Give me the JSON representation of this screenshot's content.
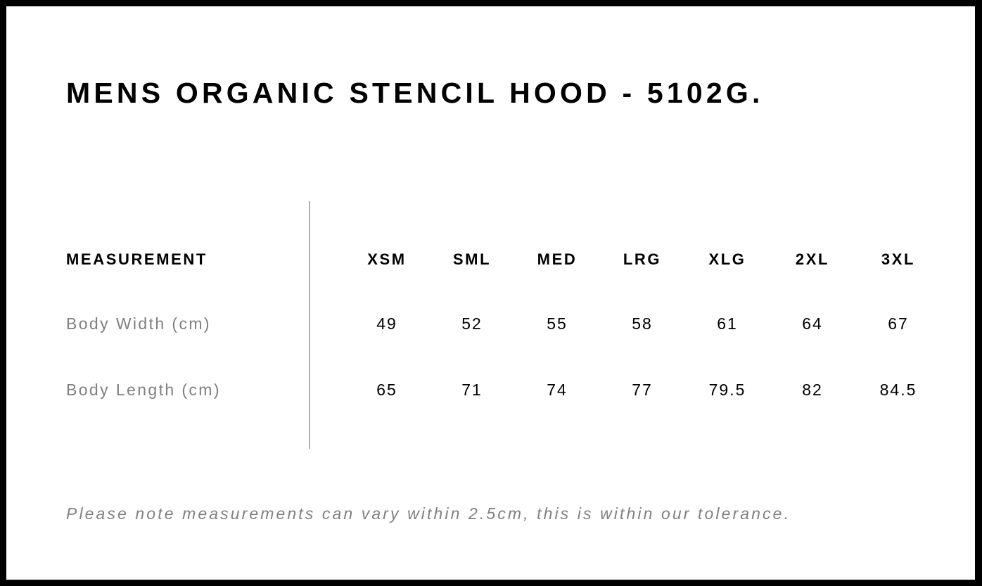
{
  "title": "MENS ORGANIC STENCIL HOOD - 5102G.",
  "table": {
    "header_label": "MEASUREMENT",
    "sizes": [
      "XSM",
      "SML",
      "MED",
      "LRG",
      "XLG",
      "2XL",
      "3XL"
    ],
    "rows": [
      {
        "label": "Body Width (cm)",
        "values": [
          "49",
          "52",
          "55",
          "58",
          "61",
          "64",
          "67"
        ]
      },
      {
        "label": "Body Length (cm)",
        "values": [
          "65",
          "71",
          "74",
          "77",
          "79.5",
          "82",
          "84.5"
        ]
      }
    ]
  },
  "note": "Please note measurements can vary within 2.5cm, this is within our tolerance."
}
